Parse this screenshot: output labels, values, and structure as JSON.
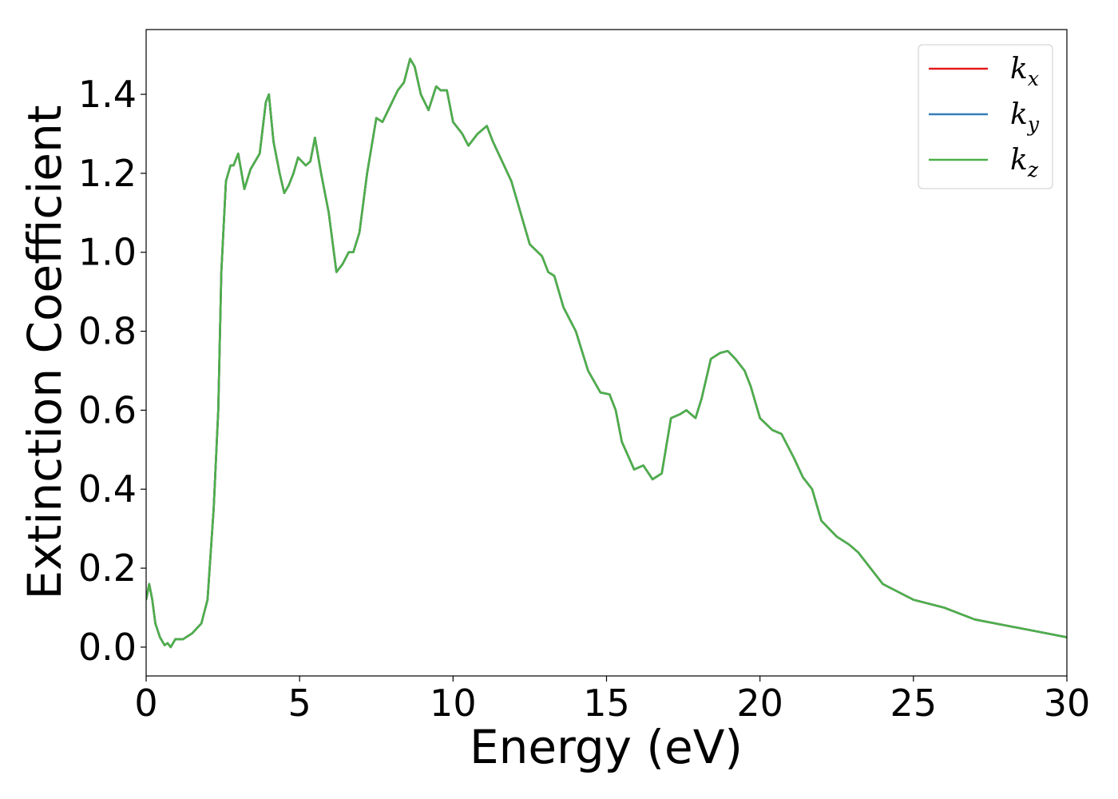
{
  "chart_data": {
    "type": "line",
    "xlabel": "Energy (eV)",
    "ylabel": "Extinction Coefficient",
    "x": [
      0,
      0.1,
      0.2,
      0.3,
      0.45,
      0.6,
      0.7,
      0.8,
      0.95,
      1.2,
      1.5,
      1.8,
      2.0,
      2.2,
      2.35,
      2.45,
      2.6,
      2.75,
      2.85,
      3.0,
      3.2,
      3.4,
      3.7,
      3.9,
      4.0,
      4.15,
      4.35,
      4.5,
      4.65,
      4.8,
      4.95,
      5.2,
      5.35,
      5.5,
      5.7,
      5.95,
      6.2,
      6.4,
      6.6,
      6.75,
      6.95,
      7.2,
      7.5,
      7.7,
      7.95,
      8.2,
      8.4,
      8.6,
      8.75,
      8.95,
      9.2,
      9.45,
      9.6,
      9.8,
      10.0,
      10.3,
      10.5,
      10.8,
      11.1,
      11.3,
      11.6,
      11.9,
      12.2,
      12.5,
      12.9,
      13.1,
      13.3,
      13.6,
      14.0,
      14.4,
      14.8,
      15.1,
      15.3,
      15.5,
      15.9,
      16.2,
      16.5,
      16.8,
      17.1,
      17.4,
      17.6,
      17.9,
      18.1,
      18.4,
      18.7,
      18.95,
      19.2,
      19.5,
      19.7,
      20.0,
      20.4,
      20.7,
      21.1,
      21.4,
      21.7,
      22.0,
      22.5,
      22.9,
      23.2,
      23.6,
      24.0,
      24.5,
      25.0,
      26.0,
      26.5,
      27.0,
      28.0,
      29.0,
      30.0
    ],
    "series": [
      {
        "name": "k_x",
        "color": "#e41a1c",
        "values": [
          0.12,
          0.16,
          0.12,
          0.06,
          0.025,
          0.005,
          0.01,
          0.0,
          0.02,
          0.02,
          0.035,
          0.06,
          0.12,
          0.35,
          0.6,
          0.95,
          1.18,
          1.22,
          1.22,
          1.25,
          1.16,
          1.21,
          1.25,
          1.38,
          1.4,
          1.28,
          1.2,
          1.15,
          1.17,
          1.2,
          1.24,
          1.22,
          1.23,
          1.29,
          1.2,
          1.1,
          0.95,
          0.97,
          1.0,
          1.0,
          1.05,
          1.2,
          1.34,
          1.33,
          1.37,
          1.41,
          1.43,
          1.49,
          1.47,
          1.4,
          1.36,
          1.42,
          1.41,
          1.41,
          1.33,
          1.3,
          1.27,
          1.3,
          1.32,
          1.28,
          1.23,
          1.18,
          1.1,
          1.02,
          0.99,
          0.95,
          0.94,
          0.86,
          0.8,
          0.7,
          0.645,
          0.64,
          0.6,
          0.52,
          0.45,
          0.46,
          0.425,
          0.44,
          0.58,
          0.59,
          0.6,
          0.58,
          0.63,
          0.73,
          0.745,
          0.75,
          0.73,
          0.7,
          0.66,
          0.58,
          0.55,
          0.54,
          0.48,
          0.43,
          0.4,
          0.32,
          0.28,
          0.26,
          0.24,
          0.2,
          0.16,
          0.14,
          0.12,
          0.1,
          0.085,
          0.07,
          0.055,
          0.04,
          0.025
        ]
      },
      {
        "name": "k_y",
        "color": "#377eb8",
        "values": [
          0.12,
          0.16,
          0.12,
          0.06,
          0.025,
          0.005,
          0.01,
          0.0,
          0.02,
          0.02,
          0.035,
          0.06,
          0.12,
          0.35,
          0.6,
          0.95,
          1.18,
          1.22,
          1.22,
          1.25,
          1.16,
          1.21,
          1.25,
          1.38,
          1.4,
          1.28,
          1.2,
          1.15,
          1.17,
          1.2,
          1.24,
          1.22,
          1.23,
          1.29,
          1.2,
          1.1,
          0.95,
          0.97,
          1.0,
          1.0,
          1.05,
          1.2,
          1.34,
          1.33,
          1.37,
          1.41,
          1.43,
          1.49,
          1.47,
          1.4,
          1.36,
          1.42,
          1.41,
          1.41,
          1.33,
          1.3,
          1.27,
          1.3,
          1.32,
          1.28,
          1.23,
          1.18,
          1.1,
          1.02,
          0.99,
          0.95,
          0.94,
          0.86,
          0.8,
          0.7,
          0.645,
          0.64,
          0.6,
          0.52,
          0.45,
          0.46,
          0.425,
          0.44,
          0.58,
          0.59,
          0.6,
          0.58,
          0.63,
          0.73,
          0.745,
          0.75,
          0.73,
          0.7,
          0.66,
          0.58,
          0.55,
          0.54,
          0.48,
          0.43,
          0.4,
          0.32,
          0.28,
          0.26,
          0.24,
          0.2,
          0.16,
          0.14,
          0.12,
          0.1,
          0.085,
          0.07,
          0.055,
          0.04,
          0.025
        ]
      },
      {
        "name": "k_z",
        "color": "#4daf4a",
        "values": [
          0.12,
          0.16,
          0.12,
          0.06,
          0.025,
          0.005,
          0.01,
          0.0,
          0.02,
          0.02,
          0.035,
          0.06,
          0.12,
          0.35,
          0.6,
          0.95,
          1.18,
          1.22,
          1.22,
          1.25,
          1.16,
          1.21,
          1.25,
          1.38,
          1.4,
          1.28,
          1.2,
          1.15,
          1.17,
          1.2,
          1.24,
          1.22,
          1.23,
          1.29,
          1.2,
          1.1,
          0.95,
          0.97,
          1.0,
          1.0,
          1.05,
          1.2,
          1.34,
          1.33,
          1.37,
          1.41,
          1.43,
          1.49,
          1.47,
          1.4,
          1.36,
          1.42,
          1.41,
          1.41,
          1.33,
          1.3,
          1.27,
          1.3,
          1.32,
          1.28,
          1.23,
          1.18,
          1.1,
          1.02,
          0.99,
          0.95,
          0.94,
          0.86,
          0.8,
          0.7,
          0.645,
          0.64,
          0.6,
          0.52,
          0.45,
          0.46,
          0.425,
          0.44,
          0.58,
          0.59,
          0.6,
          0.58,
          0.63,
          0.73,
          0.745,
          0.75,
          0.73,
          0.7,
          0.66,
          0.58,
          0.55,
          0.54,
          0.48,
          0.43,
          0.4,
          0.32,
          0.28,
          0.26,
          0.24,
          0.2,
          0.16,
          0.14,
          0.12,
          0.1,
          0.085,
          0.07,
          0.055,
          0.04,
          0.025
        ]
      }
    ],
    "xlim": [
      0,
      30
    ],
    "xticks": [
      0,
      5,
      10,
      15,
      20,
      25,
      30
    ],
    "ylim": [
      -0.073,
      1.564
    ],
    "yticks": [
      {
        "value": 0,
        "label": "0.0"
      },
      0.2,
      0.4,
      0.6,
      0.8,
      {
        "value": 1,
        "label": "1.0"
      },
      1.2,
      1.4
    ],
    "grid": false,
    "legend": "upper right"
  }
}
